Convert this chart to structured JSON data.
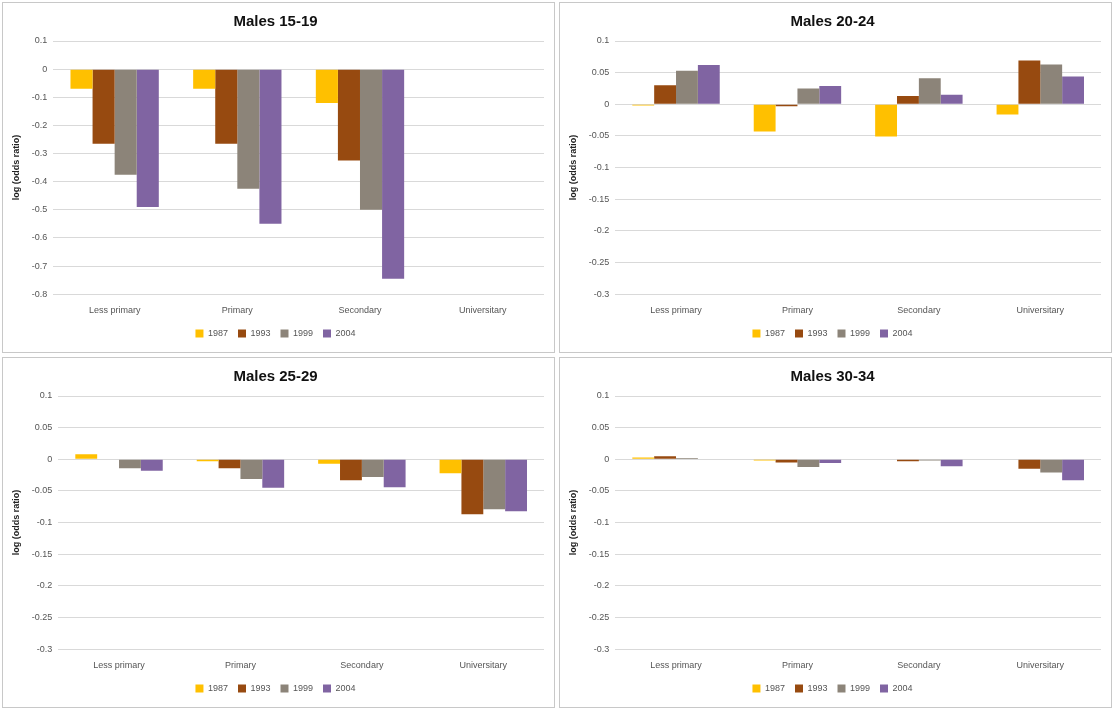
{
  "chart_data": [
    {
      "type": "bar",
      "title": "Males 15-19",
      "ylabel": "log (odds ratio)",
      "categories": [
        "Less primary",
        "Primary",
        "Secondary",
        "Universitary"
      ],
      "series": [
        {
          "name": "1987",
          "color": "#ffc000",
          "values": [
            -0.07,
            -0.07,
            -0.12,
            null
          ]
        },
        {
          "name": "1993",
          "color": "#974a10",
          "values": [
            -0.265,
            -0.265,
            -0.325,
            null
          ]
        },
        {
          "name": "1999",
          "color": "#8c8479",
          "values": [
            -0.375,
            -0.425,
            -0.5,
            null
          ]
        },
        {
          "name": "2004",
          "color": "#8064a2",
          "values": [
            -0.49,
            -0.55,
            -0.745,
            null
          ]
        }
      ],
      "ylim": [
        -0.8,
        0.1
      ],
      "yticks": [
        0.1,
        0,
        -0.1,
        -0.2,
        -0.3,
        -0.4,
        -0.5,
        -0.6,
        -0.7,
        -0.8
      ],
      "grid": "y",
      "legend": "bottom"
    },
    {
      "type": "bar",
      "title": "Males 20-24",
      "ylabel": "log (odds ratio)",
      "categories": [
        "Less primary",
        "Primary",
        "Secondary",
        "Universitary"
      ],
      "series": [
        {
          "name": "1987",
          "color": "#ffc000",
          "values": [
            -0.002,
            -0.043,
            -0.051,
            -0.016
          ]
        },
        {
          "name": "1993",
          "color": "#974a10",
          "values": [
            0.03,
            -0.003,
            0.013,
            0.069
          ]
        },
        {
          "name": "1999",
          "color": "#8c8479",
          "values": [
            0.053,
            0.025,
            0.041,
            0.063
          ]
        },
        {
          "name": "2004",
          "color": "#8064a2",
          "values": [
            0.062,
            0.029,
            0.015,
            0.044
          ]
        }
      ],
      "ylim": [
        -0.3,
        0.1
      ],
      "yticks": [
        0.1,
        0.05,
        0,
        -0.05,
        -0.1,
        -0.15,
        -0.2,
        -0.25,
        -0.3
      ],
      "grid": "y",
      "legend": "bottom"
    },
    {
      "type": "bar",
      "title": "Males 25-29",
      "ylabel": "log (odds ratio)",
      "categories": [
        "Less primary",
        "Primary",
        "Secondary",
        "Universitary"
      ],
      "series": [
        {
          "name": "1987",
          "color": "#ffc000",
          "values": [
            0.008,
            -0.003,
            -0.007,
            -0.022
          ]
        },
        {
          "name": "1993",
          "color": "#974a10",
          "values": [
            0,
            -0.014,
            -0.033,
            -0.087
          ]
        },
        {
          "name": "1999",
          "color": "#8c8479",
          "values": [
            -0.014,
            -0.031,
            -0.028,
            -0.079
          ]
        },
        {
          "name": "2004",
          "color": "#8064a2",
          "values": [
            -0.018,
            -0.045,
            -0.044,
            -0.082
          ]
        }
      ],
      "ylim": [
        -0.3,
        0.1
      ],
      "yticks": [
        0.1,
        0.05,
        0,
        -0.05,
        -0.1,
        -0.15,
        -0.2,
        -0.25,
        -0.3
      ],
      "grid": "y",
      "legend": "bottom"
    },
    {
      "type": "bar",
      "title": "Males 30-34",
      "ylabel": "log (odds ratio)",
      "categories": [
        "Less primary",
        "Primary",
        "Secondary",
        "Universitary"
      ],
      "series": [
        {
          "name": "1987",
          "color": "#ffc000",
          "values": [
            0.003,
            -0.002,
            null,
            null
          ]
        },
        {
          "name": "1993",
          "color": "#974a10",
          "values": [
            0.005,
            -0.005,
            -0.003,
            -0.015
          ]
        },
        {
          "name": "1999",
          "color": "#8c8479",
          "values": [
            0.002,
            -0.012,
            -0.002,
            -0.021
          ]
        },
        {
          "name": "2004",
          "color": "#8064a2",
          "values": [
            null,
            -0.006,
            -0.011,
            -0.033
          ]
        }
      ],
      "ylim": [
        -0.3,
        0.1
      ],
      "yticks": [
        0.1,
        0.05,
        0,
        -0.05,
        -0.1,
        -0.15,
        -0.2,
        -0.25,
        -0.3
      ],
      "grid": "y",
      "legend": "bottom"
    }
  ]
}
